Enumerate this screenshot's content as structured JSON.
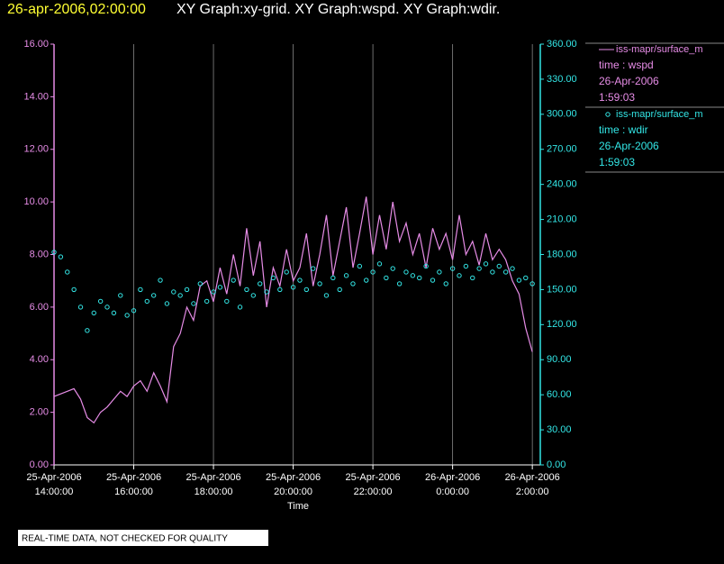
{
  "chart_data": {
    "type": "line",
    "header_time": "26-apr-2006,02:00:00",
    "title": "XY Graph:xy-grid.  XY Graph:wspd.  XY Graph:wdir.",
    "xlabel": "Time",
    "footer": "REAL-TIME DATA, NOT CHECKED FOR QUALITY",
    "grid": true,
    "xlim": [
      "2006-04-25T14:00",
      "2006-04-26T02:12"
    ],
    "xticks": [
      {
        "value": "2006-04-25T14:00",
        "label": [
          "25-Apr-2006",
          "14:00:00"
        ]
      },
      {
        "value": "2006-04-25T16:00",
        "label": [
          "25-Apr-2006",
          "16:00:00"
        ]
      },
      {
        "value": "2006-04-25T18:00",
        "label": [
          "25-Apr-2006",
          "18:00:00"
        ]
      },
      {
        "value": "2006-04-25T20:00",
        "label": [
          "25-Apr-2006",
          "20:00:00"
        ]
      },
      {
        "value": "2006-04-25T22:00",
        "label": [
          "25-Apr-2006",
          "22:00:00"
        ]
      },
      {
        "value": "2006-04-26T00:00",
        "label": [
          "26-Apr-2006",
          "0:00:00"
        ]
      },
      {
        "value": "2006-04-26T02:00",
        "label": [
          "26-Apr-2006",
          "2:00:00"
        ]
      }
    ],
    "ylim": [
      0,
      16
    ],
    "yticks": [
      {
        "value": 0,
        "label": "0.00"
      },
      {
        "value": 2,
        "label": "2.00"
      },
      {
        "value": 4,
        "label": "4.00"
      },
      {
        "value": 6,
        "label": "6.00"
      },
      {
        "value": 8,
        "label": "8.00"
      },
      {
        "value": 10,
        "label": "10.00"
      },
      {
        "value": 12,
        "label": "12.00"
      },
      {
        "value": 14,
        "label": "14.00"
      },
      {
        "value": 16,
        "label": "16.00"
      }
    ],
    "y2lim": [
      0,
      360
    ],
    "y2ticks": [
      {
        "value": 0,
        "label": "0.00"
      },
      {
        "value": 30,
        "label": "30.00"
      },
      {
        "value": 60,
        "label": "60.00"
      },
      {
        "value": 90,
        "label": "90.00"
      },
      {
        "value": 120,
        "label": "120.00"
      },
      {
        "value": 150,
        "label": "150.00"
      },
      {
        "value": 180,
        "label": "180.00"
      },
      {
        "value": 210,
        "label": "210.00"
      },
      {
        "value": 240,
        "label": "240.00"
      },
      {
        "value": 270,
        "label": "270.00"
      },
      {
        "value": 300,
        "label": "300.00"
      },
      {
        "value": 330,
        "label": "330.00"
      },
      {
        "value": 360,
        "label": "360.00"
      }
    ],
    "x": [
      "2006-04-25T14:00",
      "2006-04-25T14:10",
      "2006-04-25T14:20",
      "2006-04-25T14:30",
      "2006-04-25T14:40",
      "2006-04-25T14:50",
      "2006-04-25T15:00",
      "2006-04-25T15:10",
      "2006-04-25T15:20",
      "2006-04-25T15:30",
      "2006-04-25T15:40",
      "2006-04-25T15:50",
      "2006-04-25T16:00",
      "2006-04-25T16:10",
      "2006-04-25T16:20",
      "2006-04-25T16:30",
      "2006-04-25T16:40",
      "2006-04-25T16:50",
      "2006-04-25T17:00",
      "2006-04-25T17:10",
      "2006-04-25T17:20",
      "2006-04-25T17:30",
      "2006-04-25T17:40",
      "2006-04-25T17:50",
      "2006-04-25T18:00",
      "2006-04-25T18:10",
      "2006-04-25T18:20",
      "2006-04-25T18:30",
      "2006-04-25T18:40",
      "2006-04-25T18:50",
      "2006-04-25T19:00",
      "2006-04-25T19:10",
      "2006-04-25T19:20",
      "2006-04-25T19:30",
      "2006-04-25T19:40",
      "2006-04-25T19:50",
      "2006-04-25T20:00",
      "2006-04-25T20:10",
      "2006-04-25T20:20",
      "2006-04-25T20:30",
      "2006-04-25T20:40",
      "2006-04-25T20:50",
      "2006-04-25T21:00",
      "2006-04-25T21:10",
      "2006-04-25T21:20",
      "2006-04-25T21:30",
      "2006-04-25T21:40",
      "2006-04-25T21:50",
      "2006-04-25T22:00",
      "2006-04-25T22:10",
      "2006-04-25T22:20",
      "2006-04-25T22:30",
      "2006-04-25T22:40",
      "2006-04-25T22:50",
      "2006-04-25T23:00",
      "2006-04-25T23:10",
      "2006-04-25T23:20",
      "2006-04-25T23:30",
      "2006-04-25T23:40",
      "2006-04-25T23:50",
      "2006-04-26T00:00",
      "2006-04-26T00:10",
      "2006-04-26T00:20",
      "2006-04-26T00:30",
      "2006-04-26T00:40",
      "2006-04-26T00:50",
      "2006-04-26T01:00",
      "2006-04-26T01:10",
      "2006-04-26T01:20",
      "2006-04-26T01:30",
      "2006-04-26T01:40",
      "2006-04-26T01:50",
      "2006-04-26T02:00"
    ],
    "series": [
      {
        "name": "iss-mapr/surface_m",
        "info": [
          "time : wspd",
          "26-Apr-2006",
          "1:59:03"
        ],
        "color": "#e68ce6",
        "style": "line",
        "values": [
          2.6,
          2.7,
          2.8,
          2.9,
          2.5,
          1.8,
          1.6,
          2.0,
          2.2,
          2.5,
          2.8,
          2.6,
          3.0,
          3.2,
          2.8,
          3.5,
          3.0,
          2.4,
          4.5,
          5.0,
          6.0,
          5.5,
          6.8,
          7.0,
          6.2,
          7.5,
          6.5,
          8.0,
          6.8,
          9.0,
          7.2,
          8.5,
          6.0,
          7.5,
          6.8,
          8.2,
          7.0,
          7.5,
          8.8,
          6.8,
          8.0,
          9.5,
          7.2,
          8.5,
          9.8,
          7.5,
          8.8,
          10.2,
          8.0,
          9.5,
          8.2,
          10.0,
          8.5,
          9.2,
          8.0,
          8.8,
          7.5,
          9.0,
          8.2,
          8.8,
          7.8,
          9.5,
          8.0,
          8.5,
          7.6,
          8.8,
          7.8,
          8.2,
          7.8,
          7.0,
          6.5,
          5.2,
          4.3
        ]
      },
      {
        "name": "iss-mapr/surface_m",
        "info": [
          "time : wdir",
          "26-Apr-2006",
          "1:59:03"
        ],
        "color": "#33e6e6",
        "style": "scatter",
        "axis": "y2",
        "values": [
          182,
          178,
          165,
          150,
          135,
          115,
          130,
          140,
          135,
          130,
          145,
          128,
          132,
          150,
          140,
          145,
          158,
          138,
          148,
          145,
          150,
          138,
          155,
          140,
          148,
          152,
          140,
          158,
          135,
          150,
          145,
          155,
          148,
          160,
          150,
          165,
          152,
          158,
          150,
          168,
          155,
          145,
          160,
          150,
          162,
          155,
          170,
          158,
          165,
          172,
          160,
          168,
          155,
          165,
          162,
          160,
          170,
          158,
          165,
          155,
          168,
          162,
          170,
          160,
          168,
          172,
          165,
          170,
          165,
          168,
          158,
          160,
          155
        ]
      }
    ]
  }
}
